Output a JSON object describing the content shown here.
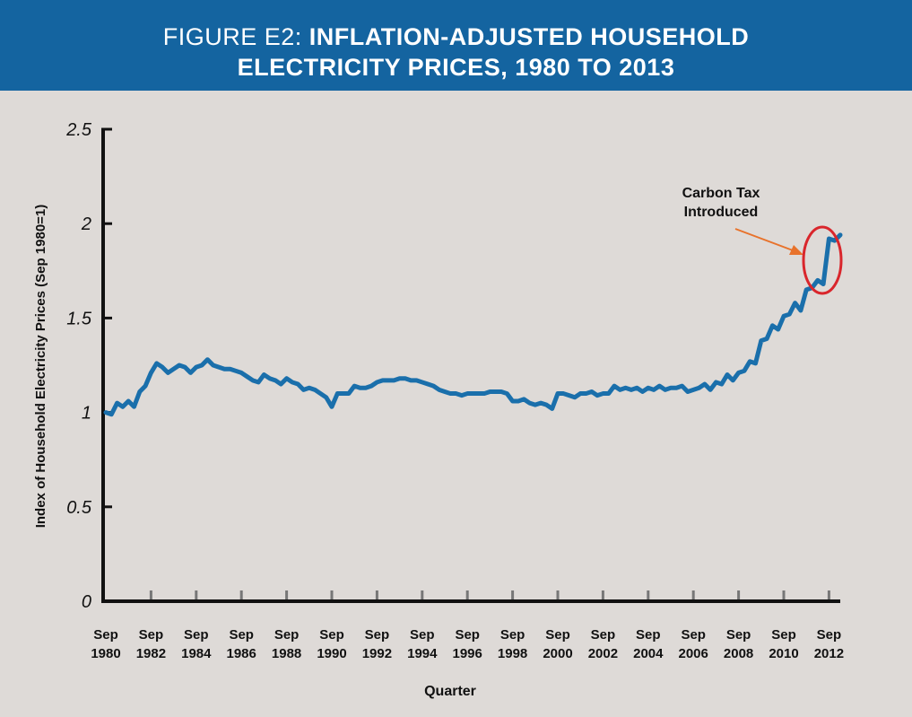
{
  "header": {
    "title_lead": "FIGURE E2: ",
    "title_rest": "INFLATION-ADJUSTED HOUSEHOLD",
    "title_line2": "ELECTRICITY PRICES, 1980 TO 2013"
  },
  "colors": {
    "header_bg": "#1464a0",
    "background": "#dedad7",
    "line": "#1a6fab",
    "annotation_ellipse": "#d9262c",
    "annotation_arrow": "#e8722b"
  },
  "chart_data": {
    "type": "line",
    "title": "FIGURE E2: INFLATION-ADJUSTED HOUSEHOLD ELECTRICITY PRICES, 1980 TO 2013",
    "xlabel": "Quarter",
    "ylabel": "Index of Household Electricity Prices (Sep 1980=1)",
    "ylim": [
      0,
      2.5
    ],
    "yticks": [
      "0",
      "0.5",
      "1",
      "1.5",
      "2",
      "2.5"
    ],
    "xticks": [
      {
        "top": "Sep",
        "bottom": "1980"
      },
      {
        "top": "Sep",
        "bottom": "1982"
      },
      {
        "top": "Sep",
        "bottom": "1984"
      },
      {
        "top": "Sep",
        "bottom": "1986"
      },
      {
        "top": "Sep",
        "bottom": "1988"
      },
      {
        "top": "Sep",
        "bottom": "1990"
      },
      {
        "top": "Sep",
        "bottom": "1992"
      },
      {
        "top": "Sep",
        "bottom": "1994"
      },
      {
        "top": "Sep",
        "bottom": "1996"
      },
      {
        "top": "Sep",
        "bottom": "1998"
      },
      {
        "top": "Sep",
        "bottom": "2000"
      },
      {
        "top": "Sep",
        "bottom": "2002"
      },
      {
        "top": "Sep",
        "bottom": "2004"
      },
      {
        "top": "Sep",
        "bottom": "2006"
      },
      {
        "top": "Sep",
        "bottom": "2008"
      },
      {
        "top": "Sep",
        "bottom": "2010"
      },
      {
        "top": "Sep",
        "bottom": "2012"
      }
    ],
    "grid": false,
    "annotation": {
      "line1": "Carbon Tax",
      "line2": "Introduced"
    },
    "series": [
      {
        "values": [
          1.0,
          0.99,
          1.05,
          1.03,
          1.06,
          1.03,
          1.11,
          1.14,
          1.21,
          1.26,
          1.24,
          1.21,
          1.23,
          1.25,
          1.24,
          1.21,
          1.24,
          1.25,
          1.28,
          1.25,
          1.24,
          1.23,
          1.23,
          1.22,
          1.21,
          1.19,
          1.17,
          1.16,
          1.2,
          1.18,
          1.17,
          1.15,
          1.18,
          1.16,
          1.15,
          1.12,
          1.13,
          1.12,
          1.1,
          1.08,
          1.03,
          1.1,
          1.1,
          1.1,
          1.14,
          1.13,
          1.13,
          1.14,
          1.16,
          1.17,
          1.17,
          1.17,
          1.18,
          1.18,
          1.17,
          1.17,
          1.16,
          1.15,
          1.14,
          1.12,
          1.11,
          1.1,
          1.1,
          1.09,
          1.1,
          1.1,
          1.1,
          1.1,
          1.11,
          1.11,
          1.11,
          1.1,
          1.06,
          1.06,
          1.07,
          1.05,
          1.04,
          1.05,
          1.04,
          1.02,
          1.1,
          1.1,
          1.09,
          1.08,
          1.1,
          1.1,
          1.11,
          1.09,
          1.1,
          1.1,
          1.14,
          1.12,
          1.13,
          1.12,
          1.13,
          1.11,
          1.13,
          1.12,
          1.14,
          1.12,
          1.13,
          1.13,
          1.14,
          1.11,
          1.12,
          1.13,
          1.15,
          1.12,
          1.16,
          1.15,
          1.2,
          1.17,
          1.21,
          1.22,
          1.27,
          1.26,
          1.38,
          1.39,
          1.46,
          1.44,
          1.51,
          1.52,
          1.58,
          1.54,
          1.65,
          1.66,
          1.7,
          1.68,
          1.92,
          1.91,
          1.94
        ]
      }
    ]
  }
}
